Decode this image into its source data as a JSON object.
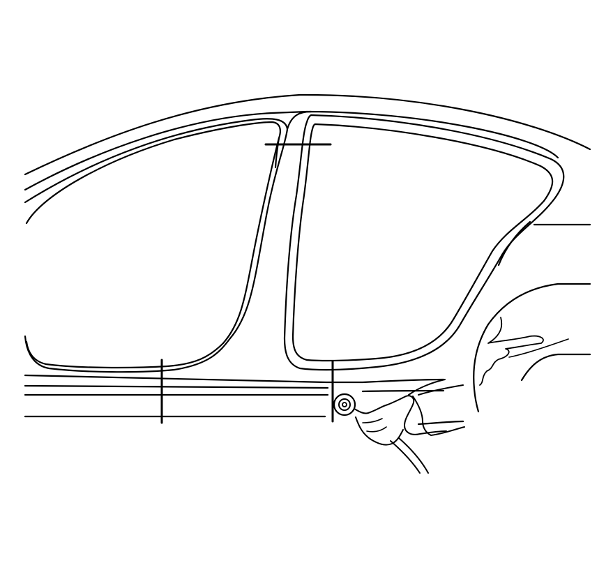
{
  "diagram": {
    "kind": "line-art",
    "subject": "vehicle-body-side-panel-sectioning",
    "colors": {
      "background": "#ffffff",
      "line": "#000000"
    },
    "cut_lines_count": 3
  }
}
